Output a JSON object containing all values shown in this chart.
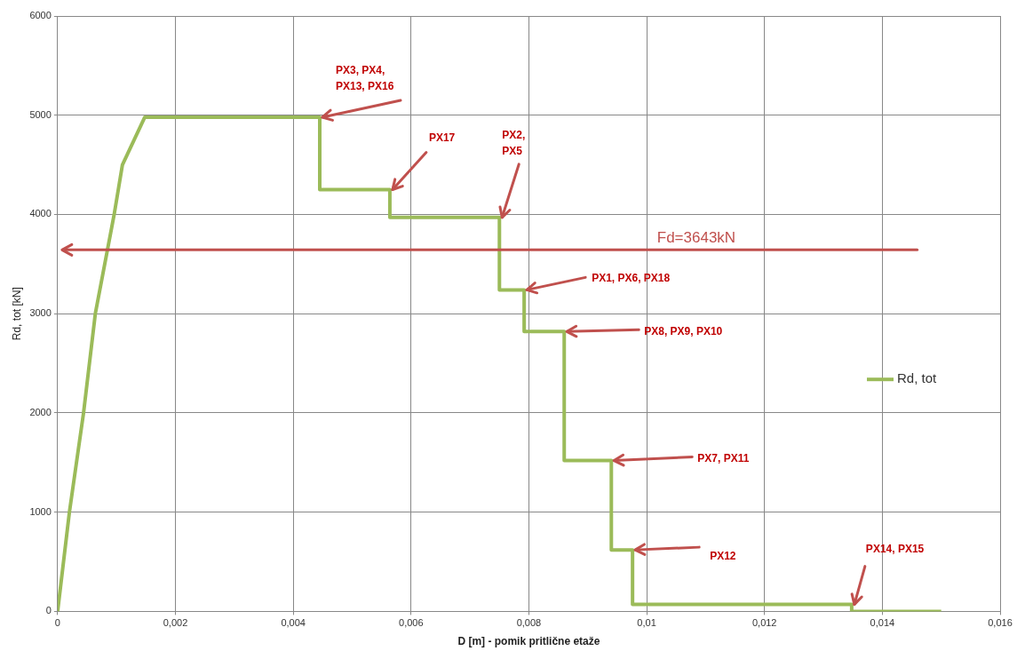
{
  "chart_data": {
    "type": "line",
    "xlabel": "D [m] - pomik pritlične etaže",
    "ylabel": "Rd, tot [kN]",
    "x": [
      0,
      0.0002,
      0.00044,
      0.00064,
      0.00096,
      0.0011,
      0.00148,
      0.00445,
      0.00445,
      0.00564,
      0.00564,
      0.0075,
      0.0075,
      0.00792,
      0.00792,
      0.0086,
      0.0086,
      0.0094,
      0.0094,
      0.00976,
      0.00976,
      0.01348,
      0.01348,
      0.015
    ],
    "series": [
      {
        "name": "Rd, tot",
        "color": "#9bbb59",
        "values": [
          0,
          1000,
          2000,
          3000,
          4000,
          4500,
          4980,
          4980,
          4250,
          4250,
          3970,
          3970,
          3240,
          3240,
          2820,
          2820,
          1520,
          1520,
          620,
          620,
          70,
          70,
          0,
          0
        ]
      }
    ],
    "xlim": [
      0,
      0.016
    ],
    "xticks": [
      0,
      {
        "value": 0.002,
        "label": "0,002"
      },
      {
        "value": 0.004,
        "label": "0,004"
      },
      {
        "value": 0.006,
        "label": "0,006"
      },
      {
        "value": 0.008,
        "label": "0,008"
      },
      {
        "value": 0.01,
        "label": "0,01"
      },
      {
        "value": 0.012,
        "label": "0,012"
      },
      {
        "value": 0.014,
        "label": "0,014"
      },
      {
        "value": 0.016,
        "label": "0,016"
      }
    ],
    "ylim": [
      0,
      6000
    ],
    "yticks": [
      0,
      1000,
      2000,
      3000,
      4000,
      5000,
      6000
    ],
    "ref_lines": [
      {
        "axis": "y",
        "value": 3643,
        "label": "Fd=3643kN",
        "color": "#c0504d"
      }
    ],
    "annotations": [
      {
        "text": "PX3, PX4,\nPX13, PX16",
        "x": 0.00445,
        "y": 4980
      },
      {
        "text": "PX17",
        "x": 0.00564,
        "y": 4250
      },
      {
        "text": "PX2,\nPX5",
        "x": 0.0075,
        "y": 3970
      },
      {
        "text": "PX1, PX6, PX18",
        "x": 0.00792,
        "y": 3240
      },
      {
        "text": "PX8, PX9, PX10",
        "x": 0.0086,
        "y": 2820
      },
      {
        "text": "PX7, PX11",
        "x": 0.0094,
        "y": 1520
      },
      {
        "text": "PX12",
        "x": 0.00976,
        "y": 620
      },
      {
        "text": "PX14, PX15",
        "x": 0.01348,
        "y": 70
      }
    ],
    "grid": true,
    "legend": "right",
    "marker": "none",
    "line_style": "solid"
  }
}
